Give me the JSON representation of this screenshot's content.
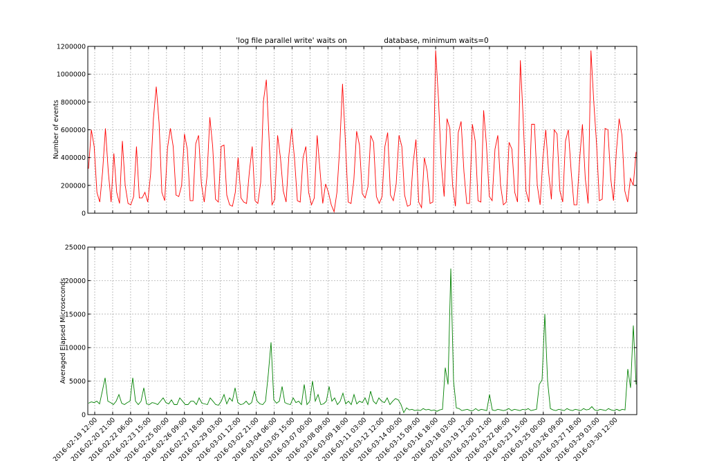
{
  "chart_data": [
    {
      "type": "line",
      "title": "'log file parallel write' waits on                database, minimum waits=0",
      "xlabel": "",
      "ylabel": "Number of events",
      "ylim": [
        0,
        1200000
      ],
      "yticks": [
        "0",
        "200000",
        "400000",
        "600000",
        "800000",
        "1000000",
        "1200000"
      ],
      "grid": true,
      "series": [
        {
          "color": "#ff0000",
          "x_range": [
            "2016-02-18 21:00",
            "2016-03-31 03:00"
          ],
          "values": [
            320000,
            600000,
            480000,
            150000,
            80000,
            300000,
            610000,
            300000,
            80000,
            430000,
            150000,
            70000,
            520000,
            200000,
            70000,
            60000,
            120000,
            480000,
            110000,
            110000,
            150000,
            80000,
            280000,
            680000,
            910000,
            650000,
            150000,
            90000,
            470000,
            610000,
            480000,
            130000,
            120000,
            200000,
            570000,
            460000,
            90000,
            90000,
            500000,
            560000,
            210000,
            80000,
            270000,
            690000,
            480000,
            100000,
            80000,
            480000,
            490000,
            130000,
            60000,
            50000,
            150000,
            400000,
            110000,
            80000,
            70000,
            300000,
            480000,
            90000,
            70000,
            220000,
            810000,
            960000,
            520000,
            60000,
            100000,
            560000,
            400000,
            160000,
            80000,
            420000,
            610000,
            390000,
            90000,
            80000,
            400000,
            480000,
            150000,
            60000,
            110000,
            560000,
            310000,
            70000,
            210000,
            150000,
            60000,
            10000,
            150000,
            470000,
            930000,
            520000,
            80000,
            70000,
            240000,
            590000,
            490000,
            140000,
            110000,
            190000,
            560000,
            510000,
            120000,
            70000,
            120000,
            480000,
            580000,
            130000,
            90000,
            210000,
            560000,
            480000,
            130000,
            50000,
            60000,
            360000,
            530000,
            80000,
            40000,
            400000,
            300000,
            70000,
            80000,
            1170000,
            820000,
            350000,
            120000,
            680000,
            610000,
            200000,
            50000,
            580000,
            660000,
            300000,
            70000,
            70000,
            640000,
            520000,
            90000,
            80000,
            740000,
            490000,
            120000,
            90000,
            460000,
            560000,
            200000,
            60000,
            80000,
            510000,
            460000,
            150000,
            80000,
            1100000,
            680000,
            160000,
            80000,
            640000,
            640000,
            200000,
            60000,
            400000,
            600000,
            300000,
            100000,
            600000,
            570000,
            160000,
            80000,
            520000,
            600000,
            300000,
            60000,
            60000,
            390000,
            640000,
            250000,
            70000,
            1170000,
            800000,
            500000,
            90000,
            100000,
            610000,
            600000,
            250000,
            90000,
            440000,
            680000,
            560000,
            160000,
            80000,
            250000,
            200000,
            440000
          ]
        }
      ]
    },
    {
      "type": "line",
      "title": "",
      "xlabel": "",
      "ylabel": "Averaged Elapsed Microseconds",
      "ylim": [
        0,
        25000
      ],
      "yticks": [
        "0",
        "5000",
        "10000",
        "15000",
        "20000",
        "25000"
      ],
      "grid": true,
      "x_tick_labels": [
        "2016-02-19 12:00",
        "2016-02-20 21:00",
        "2016-02-22 06:00",
        "2016-02-23 15:00",
        "2016-02-25 00:00",
        "2016-02-26 09:00",
        "2016-02-27 18:00",
        "2016-02-29 03:00",
        "2016-03-01 12:00",
        "2016-03-02 21:00",
        "2016-03-04 06:00",
        "2016-03-05 15:00",
        "2016-03-07 00:00",
        "2016-03-08 09:00",
        "2016-03-09 18:00",
        "2016-03-11 03:00",
        "2016-03-12 12:00",
        "2016-03-14 00:00",
        "2016-03-15 09:00",
        "2016-03-16 18:00",
        "2016-03-18 03:00",
        "2016-03-19 12:00",
        "2016-03-20 21:00",
        "2016-03-22 06:00",
        "2016-03-23 15:00",
        "2016-03-25 00:00",
        "2016-03-26 09:00",
        "2016-03-27 18:00",
        "2016-03-29 03:00",
        "2016-03-30 12:00"
      ],
      "series": [
        {
          "color": "#008000",
          "x_range": [
            "2016-02-18 21:00",
            "2016-03-31 03:00"
          ],
          "values": [
            1700,
            1900,
            1800,
            2000,
            1600,
            3500,
            5500,
            2000,
            1800,
            1500,
            2000,
            3000,
            1700,
            1500,
            1800,
            2000,
            5500,
            2000,
            1500,
            2000,
            4000,
            1600,
            1500,
            1800,
            1700,
            1500,
            2000,
            2500,
            1800,
            1600,
            2200,
            1500,
            1500,
            2500,
            2000,
            1500,
            1500,
            2000,
            2000,
            1500,
            2500,
            1700,
            1600,
            1500,
            2500,
            2000,
            1500,
            1400,
            2000,
            3000,
            1600,
            2500,
            2000,
            4000,
            1800,
            1500,
            1600,
            2000,
            1500,
            1800,
            3500,
            2000,
            1600,
            1500,
            2000,
            6000,
            10800,
            2200,
            1700,
            2000,
            4200,
            1800,
            1600,
            1500,
            2500,
            1800,
            2000,
            1500,
            4500,
            1500,
            2000,
            5000,
            2000,
            3000,
            1500,
            1600,
            2000,
            4200,
            2000,
            2500,
            1500,
            2000,
            3200,
            1600,
            2000,
            1500,
            3000,
            1600,
            2000,
            1800,
            2500,
            1500,
            3500,
            2000,
            1600,
            2500,
            2000,
            1800,
            2500,
            1500,
            2000,
            2400,
            2200,
            1500,
            300,
            1000,
            700,
            800,
            600,
            700,
            600,
            900,
            700,
            800,
            600,
            700,
            500,
            700,
            800,
            7000,
            4500,
            21800,
            5000,
            1000,
            900,
            600,
            700,
            800,
            600,
            600,
            900,
            600,
            800,
            700,
            600,
            3000,
            700,
            600,
            800,
            700,
            600,
            700,
            900,
            600,
            800,
            700,
            600,
            800,
            700,
            900,
            600,
            700,
            800,
            4500,
            5200,
            15000,
            5000,
            900,
            700,
            600,
            800,
            700,
            600,
            900,
            700,
            600,
            800,
            700,
            600,
            900,
            700,
            800,
            1200,
            700,
            600,
            800,
            700,
            600,
            900,
            700,
            600,
            800,
            600,
            800,
            700,
            6800,
            4000,
            13300,
            4500
          ]
        }
      ]
    }
  ]
}
